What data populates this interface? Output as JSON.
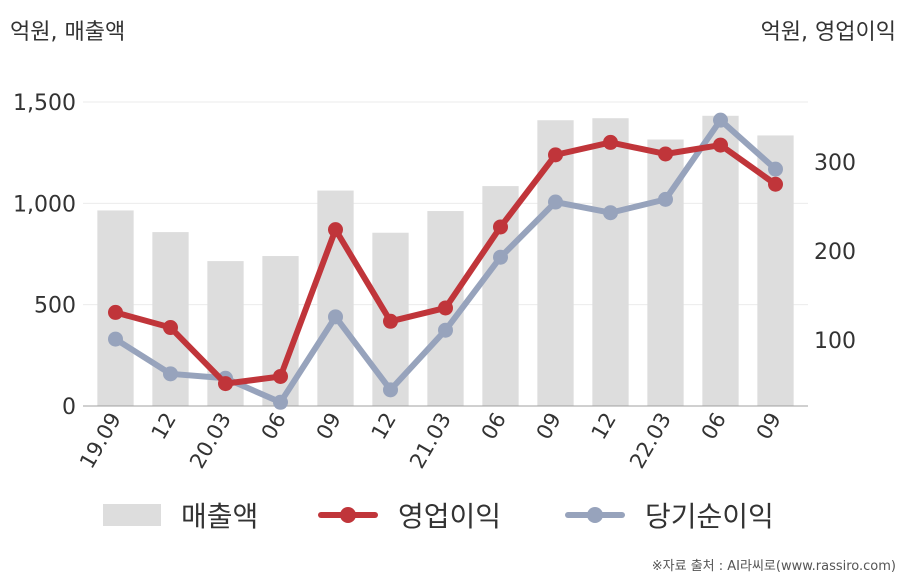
{
  "chart_data": {
    "type": "bar",
    "units": {
      "left": "억원, 매출액",
      "right": "억원, 영업이익"
    },
    "categories": [
      "19.09",
      "12",
      "20.03",
      "06",
      "09",
      "12",
      "21.03",
      "06",
      "09",
      "12",
      "22.03",
      "06",
      "09"
    ],
    "ylim_left": [
      0,
      1500
    ],
    "yticks_left": [
      "0",
      "500",
      "1,000",
      "1,500"
    ],
    "yticks_right": [
      "100",
      "200",
      "300"
    ],
    "grid": true,
    "legend_position": "bottom",
    "series": [
      {
        "name": "매출액",
        "type": "bar",
        "axis": "left",
        "color": "#dddddd",
        "values": [
          965,
          858,
          715,
          740,
          1063,
          855,
          962,
          1085,
          1410,
          1420,
          1315,
          1432,
          1335
        ]
      },
      {
        "name": "영업이익",
        "type": "line",
        "axis": "right",
        "color": "#c0353a",
        "values": [
          131,
          114,
          51,
          59,
          224,
          121,
          136,
          227,
          308,
          322,
          309,
          319,
          275
        ]
      },
      {
        "name": "당기순이익",
        "type": "line",
        "axis": "right",
        "color": "#97a3bc",
        "values": [
          101,
          62,
          57,
          30,
          126,
          44,
          111,
          193,
          255,
          243,
          258,
          347,
          292
        ]
      }
    ]
  },
  "source": "※자료 출처 : AI라씨로(www.rassiro.com)"
}
